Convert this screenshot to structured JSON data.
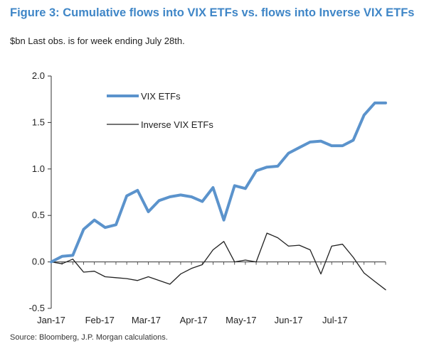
{
  "title": "Figure 3: Cumulative flows into VIX ETFs vs. flows into Inverse VIX ETFs",
  "subtitle": "$bn Last obs. is for week ending July 28th.",
  "source": "Source: Bloomberg, J.P. Morgan calculations.",
  "colors": {
    "title": "#3f86c7",
    "vix": "#5b93cc",
    "inverse": "#222222",
    "axis": "#333333"
  },
  "chart_data": {
    "type": "line",
    "title": "Figure 3: Cumulative flows into VIX ETFs vs. flows into Inverse VIX ETFs",
    "ylabel": "$bn",
    "ylim": [
      -0.5,
      2.0
    ],
    "yticks": [
      "2.0",
      "1.5",
      "1.0",
      "0.5",
      "0.0",
      "-0.5"
    ],
    "ytick_values": [
      2.0,
      1.5,
      1.0,
      0.5,
      0.0,
      -0.5
    ],
    "xlabels": [
      "Jan-17",
      "Feb-17",
      "Mar-17",
      "Apr-17",
      "May-17",
      "Jun-17",
      "Jul-17"
    ],
    "xlabel_weeks": [
      0,
      4.5,
      8.8,
      13.2,
      17.6,
      22,
      26.3
    ],
    "xmax": 31,
    "legend": "top-left",
    "series": [
      {
        "name": "VIX ETFs",
        "color": "#5b93cc",
        "width": 4,
        "x": [
          0,
          1,
          2,
          3,
          4,
          5,
          6,
          7,
          8,
          9,
          10,
          11,
          12,
          13,
          14,
          15,
          16,
          17,
          18,
          19,
          20,
          21,
          22,
          23,
          24,
          25,
          26,
          27,
          28,
          29,
          30,
          31
        ],
        "values": [
          0.0,
          0.06,
          0.07,
          0.35,
          0.45,
          0.37,
          0.4,
          0.71,
          0.77,
          0.54,
          0.66,
          0.7,
          0.72,
          0.7,
          0.65,
          0.8,
          0.45,
          0.82,
          0.79,
          0.98,
          1.02,
          1.03,
          1.17,
          1.23,
          1.29,
          1.3,
          1.25,
          1.25,
          1.31,
          1.58,
          1.71,
          1.71
        ]
      },
      {
        "name": "Inverse VIX ETFs",
        "color": "#222222",
        "width": 1.3,
        "x": [
          0,
          1,
          2,
          3,
          4,
          5,
          6,
          7,
          8,
          9,
          10,
          11,
          12,
          13,
          14,
          15,
          16,
          17,
          18,
          19,
          20,
          21,
          22,
          23,
          24,
          25,
          26,
          27,
          28,
          29,
          30,
          31
        ],
        "values": [
          0.0,
          -0.02,
          0.03,
          -0.11,
          -0.1,
          -0.16,
          -0.17,
          -0.18,
          -0.2,
          -0.16,
          -0.2,
          -0.24,
          -0.13,
          -0.07,
          -0.03,
          0.13,
          0.22,
          0.0,
          0.02,
          0.0,
          0.31,
          0.26,
          0.17,
          0.18,
          0.13,
          -0.13,
          0.17,
          0.19,
          0.05,
          -0.12,
          -0.21,
          -0.3
        ]
      }
    ]
  }
}
